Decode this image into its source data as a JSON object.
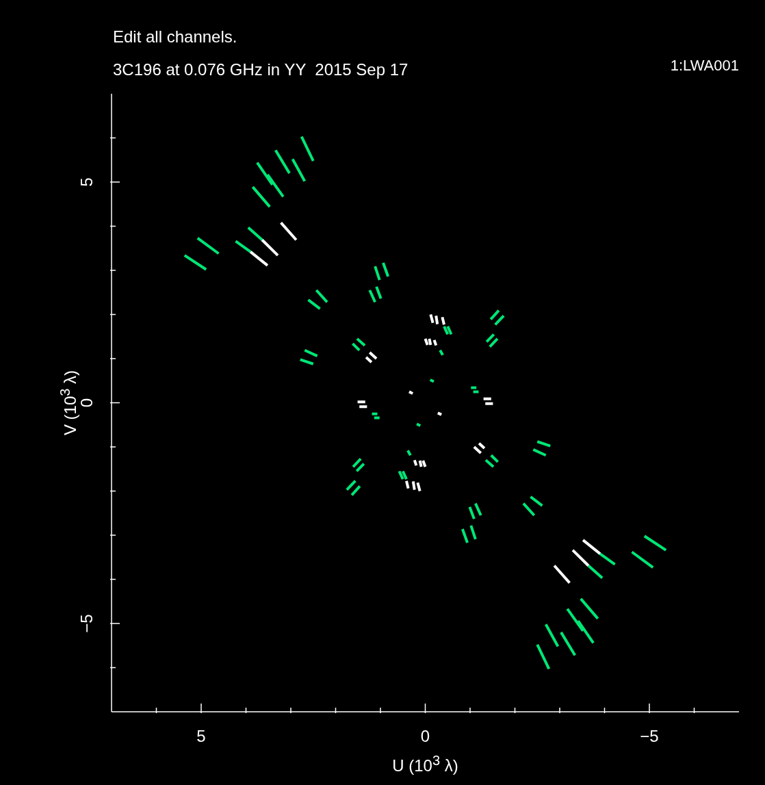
{
  "chart_data": {
    "type": "line",
    "title": "3C196 at 0.076 GHz in YY  2015 Sep 17",
    "annotations": [
      "Edit all channels.",
      "1:LWA001"
    ],
    "xlabel": "U (10$^{3}$ λ)",
    "ylabel": "V (10$^{3}$ λ)",
    "xlim": [
      7,
      -7
    ],
    "ylim": [
      -7,
      7
    ],
    "xticks": [
      {
        "value": 6,
        "label": null
      },
      5,
      {
        "value": 4,
        "label": null
      },
      {
        "value": 3,
        "label": null
      },
      {
        "value": 2,
        "label": null
      },
      {
        "value": 1,
        "label": null
      },
      0,
      {
        "value": -1,
        "label": null
      },
      {
        "value": -2,
        "label": null
      },
      {
        "value": -3,
        "label": null
      },
      {
        "value": -4,
        "label": null
      },
      {
        "value": -5,
        "label": "−5"
      },
      {
        "value": -6,
        "label": null
      }
    ],
    "yticks": [
      {
        "value": -6,
        "label": null
      },
      {
        "value": -5,
        "label": "−5"
      },
      {
        "value": -4,
        "label": null
      },
      {
        "value": -3,
        "label": null
      },
      {
        "value": -2,
        "label": null
      },
      {
        "value": -1,
        "label": null
      },
      0,
      {
        "value": 1,
        "label": null
      },
      {
        "value": 2,
        "label": null
      },
      {
        "value": 3,
        "label": null
      },
      {
        "value": 4,
        "label": null
      },
      5,
      {
        "value": 6,
        "label": null
      }
    ],
    "grid": false,
    "series": [
      {
        "color": "#00e676",
        "x": [
          2.76,
          2.5,
          null,
          3.34,
          3.03,
          null,
          2.96,
          2.69,
          null,
          3.75,
          3.41,
          null,
          3.52,
          3.17,
          null,
          3.85,
          3.47,
          null,
          5.08,
          4.61,
          null,
          5.37,
          4.89,
          null,
          3.95,
          3.64,
          null,
          4.23,
          3.9,
          null,
          1.12,
          1.02,
          null,
          0.94,
          0.83,
          null,
          1.24,
          1.12,
          null,
          1.09,
          0.99,
          null,
          2.61,
          2.35,
          null,
          2.43,
          2.19,
          null,
          2.79,
          2.5,
          null,
          2.69,
          2.41,
          null,
          1.62,
          1.47,
          null,
          1.52,
          1.35,
          null,
          1.19,
          1.07,
          null,
          1.14,
          1.02,
          null,
          -0.11,
          -0.19,
          null,
          -0.42,
          -0.5,
          null,
          -0.5,
          -0.58,
          null,
          -0.33,
          -0.39,
          null,
          -1.46,
          -1.64,
          null,
          -1.56,
          -1.75,
          null,
          -1.37,
          -1.53,
          null,
          -1.44,
          -1.61,
          null,
          -2.76,
          -2.5,
          null,
          -3.34,
          -3.03,
          null,
          -2.96,
          -2.69,
          null,
          -3.75,
          -3.41,
          null,
          -3.52,
          -3.17,
          null,
          -3.85,
          -3.47,
          null,
          -5.08,
          -4.61,
          null,
          -5.37,
          -4.89,
          null,
          -3.95,
          -3.64,
          null,
          -4.23,
          -3.9,
          null,
          -1.12,
          -1.02,
          null,
          -0.94,
          -0.83,
          null,
          -1.24,
          -1.12,
          null,
          -1.09,
          -0.99,
          null,
          -2.61,
          -2.35,
          null,
          -2.43,
          -2.19,
          null,
          -2.79,
          -2.5,
          null,
          -2.69,
          -2.41,
          null,
          -1.62,
          -1.47,
          null,
          -1.52,
          -1.35,
          null,
          -1.19,
          -1.07,
          null,
          -1.14,
          -1.02,
          null,
          0.11,
          0.19,
          null,
          0.42,
          0.5,
          null,
          0.5,
          0.58,
          null,
          0.33,
          0.39,
          null,
          1.46,
          1.64,
          null,
          1.56,
          1.75,
          null,
          1.37,
          1.53,
          null,
          1.44,
          1.61
        ],
        "values": [
          6.03,
          5.48,
          null,
          5.72,
          5.2,
          null,
          5.52,
          5.02,
          null,
          5.44,
          4.94,
          null,
          5.17,
          4.67,
          null,
          4.89,
          4.44,
          null,
          3.73,
          3.38,
          null,
          3.34,
          3.02,
          null,
          3.97,
          3.69,
          null,
          3.66,
          3.42,
          null,
          3.09,
          2.78,
          null,
          3.17,
          2.86,
          null,
          2.55,
          2.28,
          null,
          2.63,
          2.36,
          null,
          2.33,
          2.13,
          null,
          2.55,
          2.28,
          null,
          0.98,
          0.88,
          null,
          1.19,
          1.06,
          null,
          1.34,
          1.19,
          null,
          1.45,
          1.3,
          null,
          -0.25,
          -0.25,
          null,
          -0.34,
          -0.34,
          null,
          0.52,
          0.48,
          null,
          1.73,
          1.55,
          null,
          1.73,
          1.55,
          null,
          1.19,
          1.08,
          null,
          1.89,
          2.09,
          null,
          1.77,
          1.97,
          null,
          1.38,
          1.55,
          null,
          1.27,
          1.45,
          null,
          -6.03,
          -5.48,
          null,
          -5.72,
          -5.2,
          null,
          -5.52,
          -5.02,
          null,
          -5.44,
          -4.94,
          null,
          -5.17,
          -4.67,
          null,
          -4.89,
          -4.44,
          null,
          -3.73,
          -3.38,
          null,
          -3.34,
          -3.02,
          null,
          -3.97,
          -3.69,
          null,
          -3.66,
          -3.42,
          null,
          -3.09,
          -2.78,
          null,
          -3.17,
          -2.86,
          null,
          -2.55,
          -2.28,
          null,
          -2.63,
          -2.36,
          null,
          -2.33,
          -2.13,
          null,
          -2.55,
          -2.28,
          null,
          -0.98,
          -0.88,
          null,
          -1.19,
          -1.06,
          null,
          -1.34,
          -1.19,
          null,
          -1.45,
          -1.3,
          null,
          0.25,
          0.25,
          null,
          0.34,
          0.34,
          null,
          -0.52,
          -0.48,
          null,
          -1.73,
          -1.55,
          null,
          -1.73,
          -1.55,
          null,
          -1.19,
          -1.08,
          null,
          -1.89,
          -2.09,
          null,
          -1.77,
          -1.97,
          null,
          -1.38,
          -1.55,
          null,
          -1.27,
          -1.45
        ]
      },
      {
        "color": "#ffffff",
        "x": [
          3.64,
          3.29,
          null,
          3.9,
          3.52,
          null,
          3.22,
          2.88,
          null,
          1.32,
          1.2,
          null,
          1.24,
          1.09,
          null,
          1.51,
          1.34,
          null,
          1.47,
          1.3,
          null,
          0.36,
          0.28,
          null,
          -0.12,
          -0.17,
          null,
          -0.24,
          -0.27,
          null,
          -0.38,
          -0.42,
          null,
          0,
          -0.05,
          null,
          -0.09,
          -0.12,
          null,
          -0.2,
          -0.24,
          null,
          -3.64,
          -3.29,
          null,
          -3.9,
          -3.52,
          null,
          -3.22,
          -2.88,
          null,
          -1.32,
          -1.2,
          null,
          -1.24,
          -1.09,
          null,
          -1.51,
          -1.34,
          null,
          -1.47,
          -1.3,
          null,
          -0.36,
          -0.28,
          null,
          0.12,
          0.17,
          null,
          0.24,
          0.27,
          null,
          0.38,
          0.42,
          null,
          0,
          0.05,
          null,
          0.09,
          0.12,
          null,
          0.2,
          0.24
        ],
        "values": [
          3.69,
          3.34,
          null,
          3.42,
          3.11,
          null,
          4.08,
          3.69,
          null,
          1.03,
          0.92,
          null,
          1.14,
          1.0,
          null,
          0.02,
          0.02,
          null,
          -0.09,
          -0.09,
          null,
          0.25,
          0.21,
          null,
          2.0,
          1.81,
          null,
          1.97,
          1.78,
          null,
          1.94,
          1.77,
          null,
          1.45,
          1.31,
          null,
          1.45,
          1.31,
          null,
          1.42,
          1.3,
          null,
          -3.69,
          -3.34,
          null,
          -3.42,
          -3.11,
          null,
          -4.08,
          -3.69,
          null,
          -1.03,
          -0.92,
          null,
          -1.14,
          -1.0,
          null,
          -0.02,
          -0.02,
          null,
          0.09,
          0.09,
          null,
          -0.27,
          -0.23,
          null,
          -2.0,
          -1.81,
          null,
          -1.97,
          -1.78,
          null,
          -1.94,
          -1.77,
          null,
          -1.45,
          -1.31,
          null,
          -1.45,
          -1.31,
          null,
          -1.42,
          -1.3
        ]
      }
    ]
  }
}
